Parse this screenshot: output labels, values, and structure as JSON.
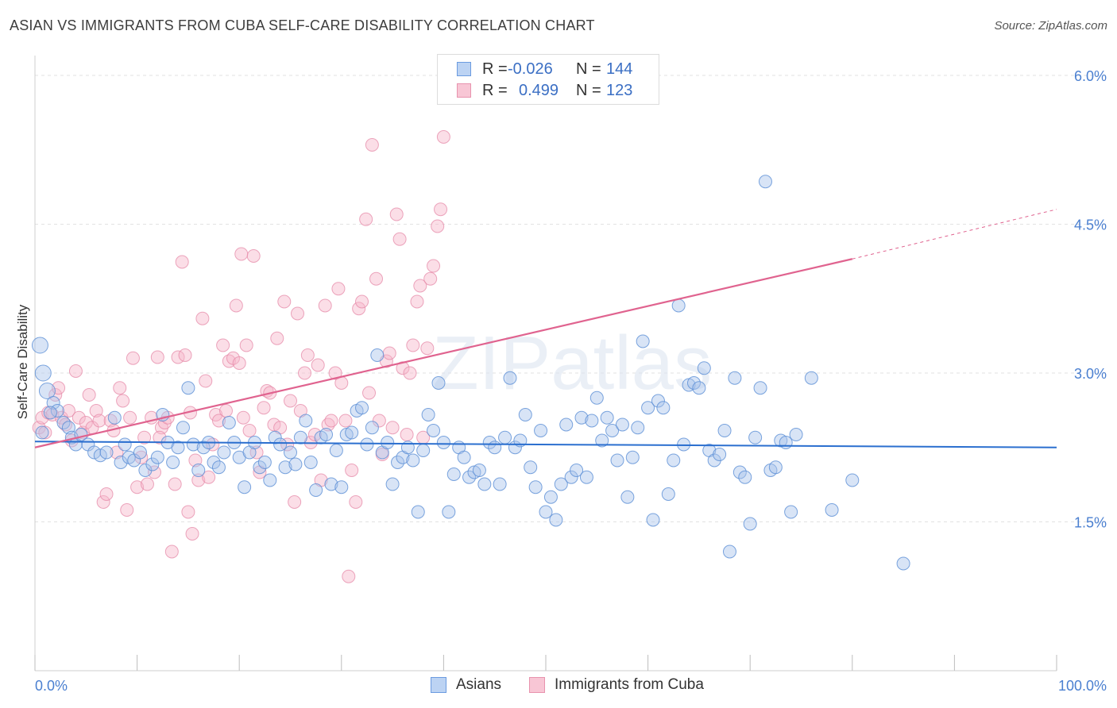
{
  "title": "ASIAN VS IMMIGRANTS FROM CUBA SELF-CARE DISABILITY CORRELATION CHART",
  "source": "Source: ZipAtlas.com",
  "watermark": "ZIPatlas",
  "legend": {
    "rows": [
      {
        "r_label": "R =",
        "r_value": "-0.026",
        "n_label": "N =",
        "n_value": "144"
      },
      {
        "r_label": "R =",
        "r_value": "0.499",
        "n_label": "N =",
        "n_value": "123"
      }
    ]
  },
  "bottom_legend": [
    "Asians",
    "Immigrants from Cuba"
  ],
  "colors": {
    "asian_fill": "#a9c4ec",
    "asian_stroke": "#5b8fd6",
    "asian_line": "#2b6fcf",
    "cuba_fill": "#f6b6c9",
    "cuba_stroke": "#e58aa8",
    "cuba_line": "#e0638f",
    "axis_text": "#4a7fd0",
    "grid": "#e2e2e2"
  },
  "chart_data": {
    "type": "scatter",
    "title": "ASIAN VS IMMIGRANTS FROM CUBA SELF-CARE DISABILITY CORRELATION CHART",
    "xlabel": "",
    "ylabel": "Self-Care Disability",
    "xlim": [
      0,
      100
    ],
    "ylim": [
      0,
      6.2
    ],
    "x_tick_labels": [
      "0.0%",
      "100.0%"
    ],
    "y_ticks": [
      1.5,
      3.0,
      4.5,
      6.0
    ],
    "y_tick_labels": [
      "1.5%",
      "3.0%",
      "4.5%",
      "6.0%"
    ],
    "grid": true,
    "legend_position": "top-center",
    "series": [
      {
        "name": "Asians",
        "trend": {
          "x": [
            0,
            100
          ],
          "y": [
            2.31,
            2.25
          ]
        },
        "points": [
          [
            0.5,
            3.28
          ],
          [
            0.8,
            3.0
          ],
          [
            1.2,
            2.82
          ],
          [
            1.8,
            2.7
          ],
          [
            2.2,
            2.62
          ],
          [
            2.8,
            2.5
          ],
          [
            3.3,
            2.45
          ],
          [
            3.6,
            2.35
          ],
          [
            4.0,
            2.28
          ],
          [
            4.5,
            2.38
          ],
          [
            5.2,
            2.28
          ],
          [
            5.8,
            2.2
          ],
          [
            6.4,
            2.17
          ],
          [
            7.0,
            2.2
          ],
          [
            7.8,
            2.55
          ],
          [
            8.4,
            2.1
          ],
          [
            8.8,
            2.28
          ],
          [
            9.2,
            2.15
          ],
          [
            9.7,
            2.12
          ],
          [
            10.3,
            2.2
          ],
          [
            10.8,
            2.02
          ],
          [
            11.5,
            2.08
          ],
          [
            12.0,
            2.15
          ],
          [
            12.5,
            2.58
          ],
          [
            13.0,
            2.3
          ],
          [
            13.5,
            2.1
          ],
          [
            14.0,
            2.25
          ],
          [
            14.5,
            2.45
          ],
          [
            15.0,
            2.85
          ],
          [
            15.5,
            2.28
          ],
          [
            16.0,
            2.02
          ],
          [
            16.5,
            2.25
          ],
          [
            17.0,
            2.3
          ],
          [
            17.5,
            2.1
          ],
          [
            18.0,
            2.05
          ],
          [
            18.5,
            2.2
          ],
          [
            19.0,
            2.5
          ],
          [
            19.5,
            2.3
          ],
          [
            20.0,
            2.15
          ],
          [
            20.5,
            1.85
          ],
          [
            21.0,
            2.2
          ],
          [
            21.5,
            2.3
          ],
          [
            22.0,
            2.05
          ],
          [
            22.5,
            2.1
          ],
          [
            23.0,
            1.92
          ],
          [
            23.5,
            2.35
          ],
          [
            24.0,
            2.28
          ],
          [
            24.5,
            2.05
          ],
          [
            25.0,
            2.2
          ],
          [
            25.5,
            2.08
          ],
          [
            26.0,
            2.35
          ],
          [
            26.5,
            2.52
          ],
          [
            27.0,
            2.1
          ],
          [
            27.5,
            1.82
          ],
          [
            28.0,
            2.35
          ],
          [
            28.5,
            2.38
          ],
          [
            29.0,
            1.88
          ],
          [
            29.5,
            2.22
          ],
          [
            30.0,
            1.85
          ],
          [
            30.5,
            2.38
          ],
          [
            31.0,
            2.4
          ],
          [
            31.5,
            2.62
          ],
          [
            32.0,
            2.65
          ],
          [
            32.5,
            2.28
          ],
          [
            33.0,
            2.45
          ],
          [
            33.5,
            3.18
          ],
          [
            34.0,
            2.2
          ],
          [
            34.5,
            2.3
          ],
          [
            35.0,
            1.88
          ],
          [
            35.5,
            2.1
          ],
          [
            36.0,
            2.15
          ],
          [
            36.5,
            2.25
          ],
          [
            37.0,
            2.12
          ],
          [
            37.5,
            1.6
          ],
          [
            38.0,
            2.22
          ],
          [
            38.5,
            2.58
          ],
          [
            39.0,
            2.42
          ],
          [
            39.5,
            2.9
          ],
          [
            40.0,
            2.3
          ],
          [
            40.5,
            1.6
          ],
          [
            41.0,
            1.98
          ],
          [
            41.5,
            2.25
          ],
          [
            42.0,
            2.15
          ],
          [
            42.5,
            1.95
          ],
          [
            43.0,
            2.0
          ],
          [
            43.5,
            2.02
          ],
          [
            44.0,
            1.88
          ],
          [
            44.5,
            2.3
          ],
          [
            45.0,
            2.25
          ],
          [
            45.5,
            1.88
          ],
          [
            46.0,
            2.35
          ],
          [
            46.5,
            2.95
          ],
          [
            47.0,
            2.25
          ],
          [
            47.5,
            2.32
          ],
          [
            48.0,
            2.58
          ],
          [
            48.5,
            2.05
          ],
          [
            49.0,
            1.85
          ],
          [
            49.5,
            2.42
          ],
          [
            50.0,
            1.6
          ],
          [
            50.5,
            1.75
          ],
          [
            51.0,
            1.52
          ],
          [
            51.5,
            1.88
          ],
          [
            52.0,
            2.48
          ],
          [
            52.5,
            1.95
          ],
          [
            53.0,
            2.02
          ],
          [
            53.5,
            2.55
          ],
          [
            54.0,
            1.95
          ],
          [
            54.5,
            2.52
          ],
          [
            55.0,
            2.75
          ],
          [
            55.5,
            2.32
          ],
          [
            56.0,
            2.55
          ],
          [
            56.5,
            2.42
          ],
          [
            57.0,
            2.12
          ],
          [
            57.5,
            2.48
          ],
          [
            58.0,
            1.75
          ],
          [
            58.5,
            2.15
          ],
          [
            59.0,
            2.45
          ],
          [
            59.5,
            3.32
          ],
          [
            60.0,
            2.65
          ],
          [
            60.5,
            1.52
          ],
          [
            61.0,
            2.72
          ],
          [
            61.5,
            2.65
          ],
          [
            62.0,
            1.78
          ],
          [
            62.5,
            2.12
          ],
          [
            63.0,
            3.68
          ],
          [
            63.5,
            2.28
          ],
          [
            64.0,
            2.88
          ],
          [
            64.5,
            2.9
          ],
          [
            65.0,
            2.85
          ],
          [
            65.5,
            3.05
          ],
          [
            66.0,
            2.22
          ],
          [
            66.5,
            2.12
          ],
          [
            67.0,
            2.18
          ],
          [
            67.5,
            2.42
          ],
          [
            68.0,
            1.2
          ],
          [
            68.5,
            2.95
          ],
          [
            69.0,
            2.0
          ],
          [
            69.5,
            1.95
          ],
          [
            70.0,
            1.48
          ],
          [
            70.5,
            2.35
          ],
          [
            71.0,
            2.85
          ],
          [
            71.5,
            4.93
          ],
          [
            72.0,
            2.02
          ],
          [
            72.5,
            2.05
          ],
          [
            73.0,
            2.32
          ],
          [
            73.5,
            2.3
          ],
          [
            74.0,
            1.6
          ],
          [
            74.5,
            2.38
          ],
          [
            76.0,
            2.95
          ],
          [
            78.0,
            1.62
          ],
          [
            80.0,
            1.92
          ],
          [
            85.0,
            1.08
          ],
          [
            0.7,
            2.4
          ],
          [
            1.5,
            2.6
          ]
        ]
      },
      {
        "name": "Immigrants from Cuba",
        "trend": {
          "x": [
            0,
            80
          ],
          "y": [
            2.25,
            4.15
          ]
        },
        "trend_dashed": {
          "x": [
            80,
            100
          ],
          "y": [
            4.15,
            4.65
          ]
        },
        "points": [
          [
            0.4,
            2.45
          ],
          [
            0.7,
            2.55
          ],
          [
            1.0,
            2.4
          ],
          [
            1.3,
            2.6
          ],
          [
            1.7,
            2.58
          ],
          [
            2.0,
            2.78
          ],
          [
            2.3,
            2.85
          ],
          [
            2.6,
            2.55
          ],
          [
            3.0,
            2.48
          ],
          [
            3.3,
            2.62
          ],
          [
            3.6,
            2.32
          ],
          [
            4.0,
            3.02
          ],
          [
            4.3,
            2.55
          ],
          [
            4.7,
            2.4
          ],
          [
            5.0,
            2.5
          ],
          [
            5.3,
            2.78
          ],
          [
            5.6,
            2.45
          ],
          [
            6.0,
            2.62
          ],
          [
            6.3,
            2.52
          ],
          [
            6.7,
            1.7
          ],
          [
            7.0,
            1.78
          ],
          [
            7.4,
            2.52
          ],
          [
            7.7,
            2.42
          ],
          [
            8.0,
            2.2
          ],
          [
            8.3,
            2.85
          ],
          [
            8.6,
            2.72
          ],
          [
            9.0,
            1.62
          ],
          [
            9.3,
            2.55
          ],
          [
            9.6,
            3.15
          ],
          [
            10.0,
            1.85
          ],
          [
            10.4,
            2.15
          ],
          [
            10.7,
            2.35
          ],
          [
            11.0,
            1.88
          ],
          [
            11.4,
            2.55
          ],
          [
            11.7,
            2.0
          ],
          [
            12.0,
            3.16
          ],
          [
            12.4,
            2.45
          ],
          [
            12.7,
            2.5
          ],
          [
            13.0,
            2.55
          ],
          [
            13.4,
            1.2
          ],
          [
            13.7,
            1.88
          ],
          [
            14.0,
            3.16
          ],
          [
            14.4,
            4.12
          ],
          [
            14.7,
            3.18
          ],
          [
            15.0,
            1.6
          ],
          [
            15.4,
            1.38
          ],
          [
            15.7,
            2.12
          ],
          [
            16.0,
            1.92
          ],
          [
            16.4,
            3.55
          ],
          [
            16.7,
            2.92
          ],
          [
            17.0,
            1.95
          ],
          [
            17.4,
            2.28
          ],
          [
            17.7,
            2.58
          ],
          [
            18.0,
            2.52
          ],
          [
            18.4,
            3.28
          ],
          [
            18.7,
            2.62
          ],
          [
            19.0,
            3.12
          ],
          [
            19.4,
            3.15
          ],
          [
            19.7,
            3.68
          ],
          [
            20.0,
            3.1
          ],
          [
            20.4,
            2.55
          ],
          [
            20.7,
            3.28
          ],
          [
            21.0,
            2.42
          ],
          [
            21.4,
            4.18
          ],
          [
            21.7,
            2.2
          ],
          [
            22.0,
            2.0
          ],
          [
            22.4,
            2.65
          ],
          [
            22.7,
            2.82
          ],
          [
            23.0,
            2.8
          ],
          [
            23.4,
            2.48
          ],
          [
            23.7,
            3.35
          ],
          [
            24.0,
            2.45
          ],
          [
            24.4,
            3.72
          ],
          [
            24.7,
            2.28
          ],
          [
            25.0,
            2.72
          ],
          [
            25.4,
            1.7
          ],
          [
            25.7,
            3.6
          ],
          [
            26.0,
            2.62
          ],
          [
            26.4,
            3.0
          ],
          [
            26.7,
            3.18
          ],
          [
            27.0,
            2.3
          ],
          [
            27.4,
            2.38
          ],
          [
            27.7,
            3.08
          ],
          [
            28.0,
            1.92
          ],
          [
            28.4,
            3.68
          ],
          [
            28.7,
            2.48
          ],
          [
            29.0,
            2.52
          ],
          [
            29.4,
            3.0
          ],
          [
            29.7,
            3.85
          ],
          [
            30.0,
            2.9
          ],
          [
            30.4,
            2.52
          ],
          [
            30.7,
            0.95
          ],
          [
            31.0,
            2.02
          ],
          [
            31.4,
            1.7
          ],
          [
            31.7,
            3.65
          ],
          [
            32.0,
            3.72
          ],
          [
            32.4,
            4.55
          ],
          [
            32.7,
            2.8
          ],
          [
            33.0,
            5.3
          ],
          [
            33.4,
            3.95
          ],
          [
            33.7,
            2.52
          ],
          [
            34.0,
            2.18
          ],
          [
            34.4,
            3.12
          ],
          [
            34.7,
            3.2
          ],
          [
            35.0,
            2.45
          ],
          [
            35.4,
            4.6
          ],
          [
            35.7,
            4.35
          ],
          [
            36.0,
            3.05
          ],
          [
            36.4,
            2.38
          ],
          [
            36.7,
            3.0
          ],
          [
            37.0,
            3.28
          ],
          [
            37.4,
            3.72
          ],
          [
            37.7,
            3.88
          ],
          [
            38.0,
            2.35
          ],
          [
            38.4,
            3.25
          ],
          [
            38.7,
            3.95
          ],
          [
            39.0,
            4.08
          ],
          [
            39.4,
            4.48
          ],
          [
            39.7,
            4.65
          ],
          [
            40.0,
            5.38
          ],
          [
            20.2,
            4.2
          ],
          [
            15.2,
            2.6
          ],
          [
            12.2,
            2.35
          ]
        ]
      }
    ]
  }
}
